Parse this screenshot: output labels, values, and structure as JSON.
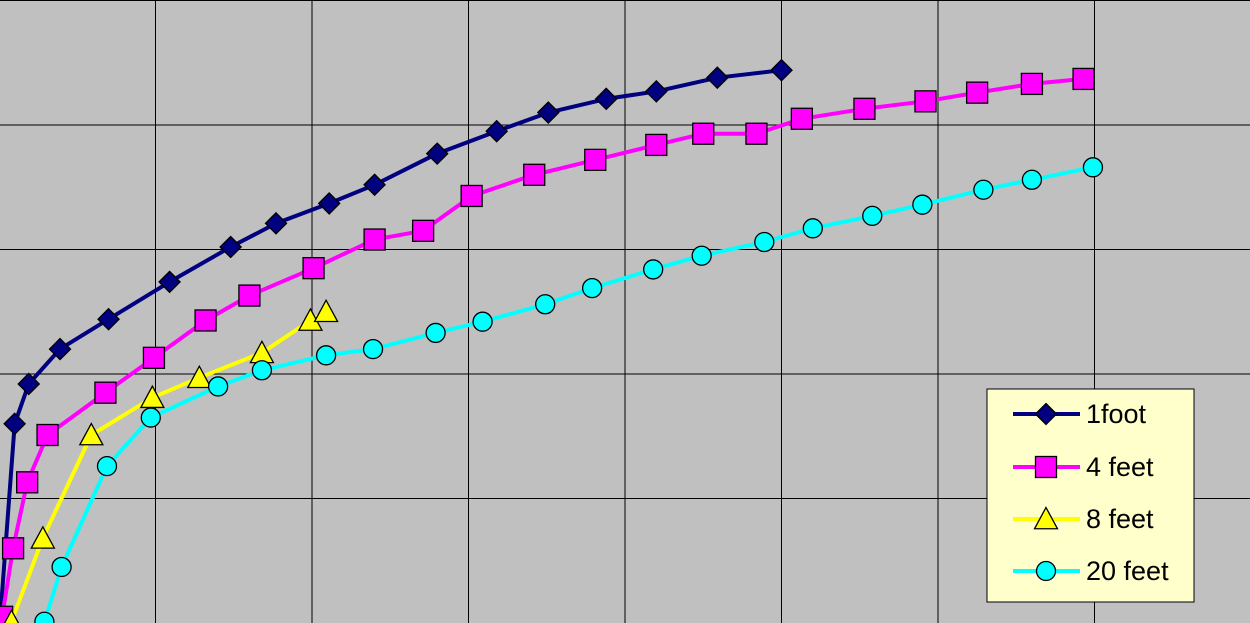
{
  "chart_data": {
    "type": "line",
    "title": "",
    "xlabel": "",
    "ylabel": "",
    "grid": true,
    "legend_position": "bottom-right",
    "xlim": [
      0,
      8
    ],
    "ylim": [
      0,
      5
    ],
    "series": [
      {
        "name": "1foot",
        "color": "#000080",
        "marker": "diamond",
        "x": [
          0.01,
          0.1,
          0.19,
          0.39,
          0.7,
          1.09,
          1.48,
          1.77,
          2.11,
          2.4,
          2.8,
          3.18,
          3.51,
          3.88,
          4.2,
          4.59,
          5.0
        ],
        "y": [
          0.08,
          1.6,
          1.92,
          2.2,
          2.44,
          2.74,
          3.02,
          3.21,
          3.37,
          3.52,
          3.77,
          3.95,
          4.1,
          4.21,
          4.27,
          4.38,
          4.44
        ]
      },
      {
        "name": "4 feet",
        "color": "#ff00ff",
        "marker": "square",
        "x": [
          0.02,
          0.09,
          0.18,
          0.31,
          0.68,
          0.99,
          1.32,
          1.6,
          2.01,
          2.4,
          2.71,
          3.02,
          3.42,
          3.81,
          4.2,
          4.5,
          4.84,
          5.13,
          5.53,
          5.92,
          6.25,
          6.6,
          6.93
        ],
        "y": [
          0.05,
          0.6,
          1.13,
          1.51,
          1.85,
          2.13,
          2.43,
          2.63,
          2.85,
          3.08,
          3.15,
          3.43,
          3.6,
          3.72,
          3.84,
          3.93,
          3.93,
          4.05,
          4.13,
          4.19,
          4.26,
          4.33,
          4.37
        ]
      },
      {
        "name": "8 feet",
        "color": "#ffff00",
        "marker": "triangle",
        "x": [
          0.08,
          0.28,
          0.59,
          0.98,
          1.28,
          1.68,
          1.99,
          2.09
        ],
        "y": [
          0.01,
          0.68,
          1.51,
          1.81,
          1.97,
          2.17,
          2.43,
          2.5
        ]
      },
      {
        "name": "20 feet",
        "color": "#00ffff",
        "marker": "circle",
        "x": [
          0.29,
          0.4,
          0.69,
          0.97,
          1.4,
          1.68,
          2.09,
          2.39,
          2.79,
          3.09,
          3.49,
          3.79,
          4.18,
          4.49,
          4.89,
          5.2,
          5.58,
          5.9,
          6.29,
          6.6,
          6.99
        ],
        "y": [
          0.01,
          0.45,
          1.26,
          1.65,
          1.9,
          2.03,
          2.15,
          2.2,
          2.33,
          2.42,
          2.56,
          2.69,
          2.84,
          2.95,
          3.06,
          3.17,
          3.27,
          3.36,
          3.48,
          3.56,
          3.66
        ]
      }
    ]
  },
  "legend": {
    "items": [
      "1foot",
      "4 feet",
      "8 feet",
      "20 feet"
    ]
  }
}
